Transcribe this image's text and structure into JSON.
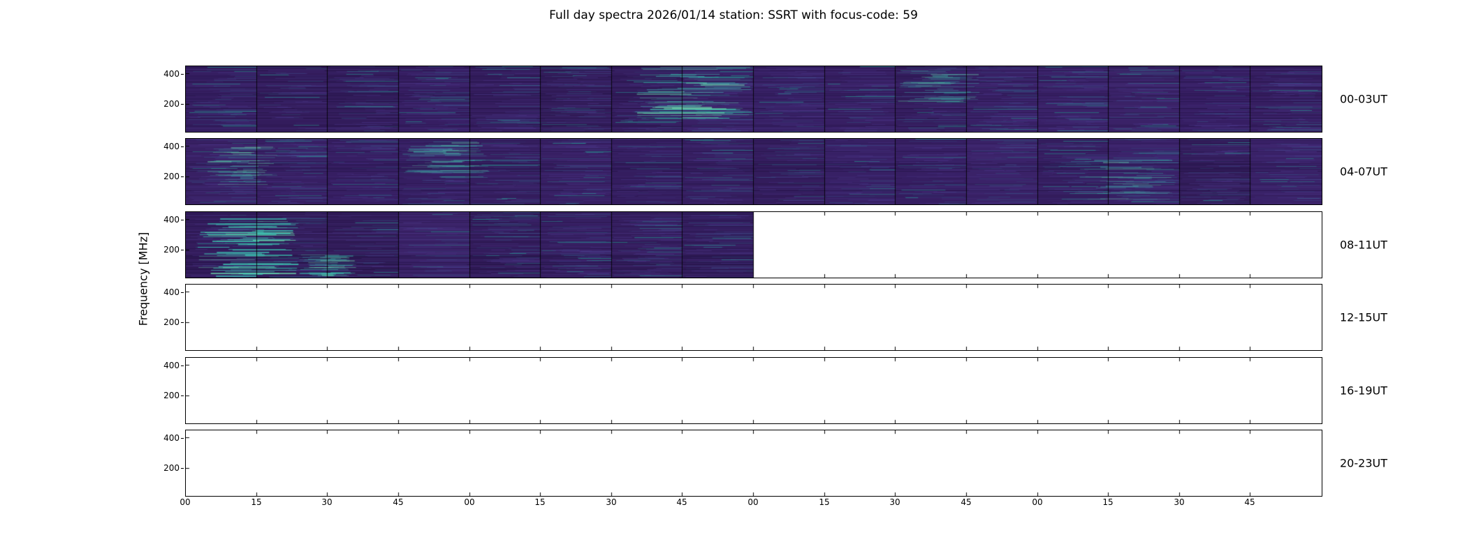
{
  "chart_data": {
    "type": "heatmap",
    "title": "Full day spectra 2026/01/14 station: SSRT with focus-code: 59",
    "ylabel": "Frequency [MHz]",
    "y_tick_labels": [
      "400",
      "200"
    ],
    "x_tick_labels": [
      "00",
      "15",
      "30",
      "45",
      "00",
      "15",
      "30",
      "45",
      "00",
      "15",
      "30",
      "45",
      "00",
      "15",
      "30",
      "45"
    ],
    "segments_per_row": 16,
    "minutes_per_segment": 15,
    "hours_per_row": 4,
    "freq_axis_range_mhz": [
      15,
      450
    ],
    "legend": "none",
    "grid": "off",
    "rows": [
      {
        "label": "00-03UT",
        "filled_segments": 16,
        "features": [
          {
            "seg_start": 6.3,
            "seg_end": 8.0,
            "y_frac": 0.38,
            "y_spread": 0.45,
            "strength": 0.75
          },
          {
            "seg_start": 10.0,
            "seg_end": 11.2,
            "y_frac": 0.3,
            "y_spread": 0.25,
            "strength": 0.35
          }
        ]
      },
      {
        "label": "04-07UT",
        "filled_segments": 16,
        "features": [
          {
            "seg_start": 0.3,
            "seg_end": 1.3,
            "y_frac": 0.42,
            "y_spread": 0.3,
            "strength": 0.5
          },
          {
            "seg_start": 3.0,
            "seg_end": 4.3,
            "y_frac": 0.32,
            "y_spread": 0.28,
            "strength": 0.45
          },
          {
            "seg_start": 12.5,
            "seg_end": 14.0,
            "y_frac": 0.62,
            "y_spread": 0.3,
            "strength": 0.3
          }
        ]
      },
      {
        "label": "08-11UT",
        "filled_segments": 8,
        "features": [
          {
            "seg_start": 0.15,
            "seg_end": 1.6,
            "y_frac": 0.6,
            "y_spread": 0.55,
            "strength": 1.0
          },
          {
            "seg_start": 1.6,
            "seg_end": 2.4,
            "y_frac": 0.85,
            "y_spread": 0.2,
            "strength": 0.5
          }
        ]
      },
      {
        "label": "12-15UT",
        "filled_segments": 0,
        "features": []
      },
      {
        "label": "16-19UT",
        "filled_segments": 0,
        "features": []
      },
      {
        "label": "20-23UT",
        "filled_segments": 0,
        "features": []
      }
    ],
    "colors": {
      "background": "#ffffff",
      "spectrogram_base": "#371f63",
      "spectrogram_streak_purple": "#4c388c",
      "spectrogram_streak_blue": "#31688e",
      "spectrogram_bright_teal": "#26a596",
      "spectrogram_highlight": "#3cc8b4",
      "axis": "#000000"
    }
  }
}
